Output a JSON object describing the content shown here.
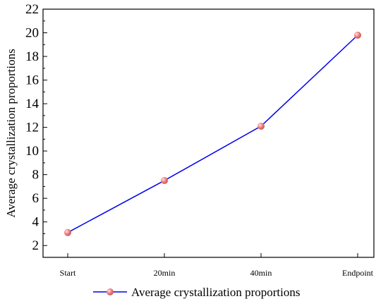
{
  "chart_data": {
    "type": "line",
    "title": "",
    "xlabel": "",
    "ylabel": "Average crystallization proportions",
    "categories": [
      "Start",
      "20min",
      "40min",
      "Endpoint"
    ],
    "series": [
      {
        "name": "Average crystallization proportions",
        "values": [
          3.1,
          7.5,
          12.1,
          19.8
        ],
        "line_color": "#0000ee",
        "marker_color": "#f08080"
      }
    ],
    "ylim": [
      1,
      22
    ],
    "yticks": [
      2,
      4,
      6,
      8,
      10,
      12,
      14,
      16,
      18,
      20,
      22
    ],
    "grid": false,
    "legend_position": "bottom-center"
  }
}
